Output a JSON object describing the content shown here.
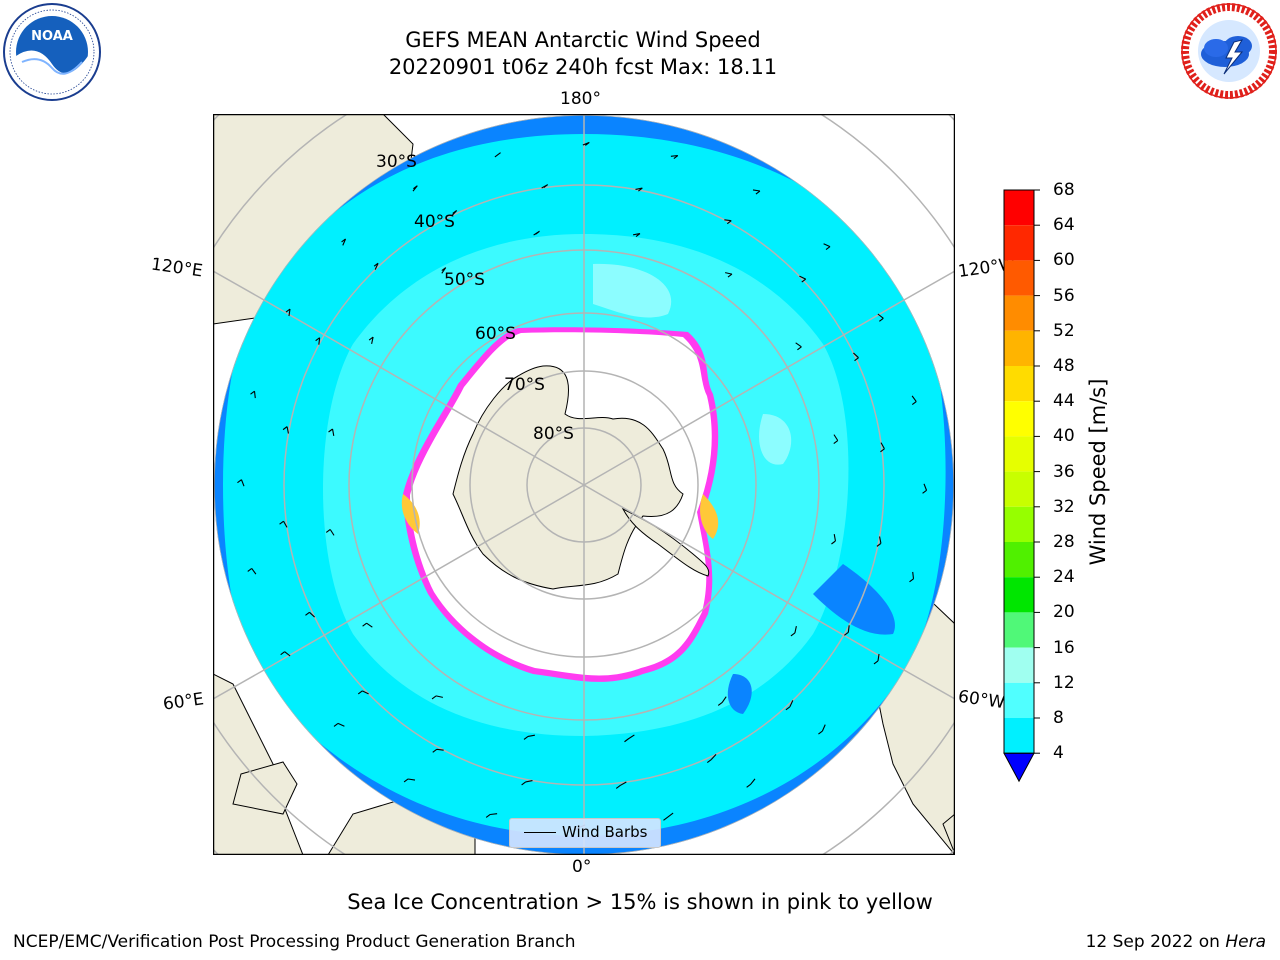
{
  "header": {
    "title_line1": "GEFS MEAN Antarctic Wind Speed",
    "title_line2": "20220901 t06z 240h fcst   Max: 18.11"
  },
  "logos": {
    "left": {
      "icon": "noaa-logo",
      "text": "NOAA"
    },
    "right": {
      "icon": "nws-logo"
    }
  },
  "map": {
    "projection": "south-polar-stereographic",
    "longitude_labels": {
      "top": "180°",
      "bottom": "0°",
      "upper_left": "120°E",
      "upper_right": "120°W",
      "lower_left": "60°E",
      "lower_right": "60°W"
    },
    "latitude_labels": [
      "30°S",
      "40°S",
      "50°S",
      "60°S",
      "70°S",
      "80°S"
    ],
    "legend_label": "Wind Barbs",
    "colors": {
      "land": "#eeecdb",
      "ocean_low": "#0a84ff",
      "ocean_mid": "#00f0ff",
      "ocean_high": "#3cfaff",
      "ocean_peak": "#8cfdff",
      "sea_ice_edge": "#ff3cf0",
      "graticule": "#b4b4b4"
    }
  },
  "colorbar": {
    "label": "Wind Speed [m/s]",
    "ticks": [
      "68",
      "64",
      "60",
      "56",
      "52",
      "48",
      "44",
      "40",
      "36",
      "32",
      "28",
      "24",
      "20",
      "16",
      "12",
      "8",
      "4"
    ],
    "colors_top_to_bottom": [
      "#ff0000",
      "#ff2800",
      "#ff5a00",
      "#ff8c00",
      "#ffb400",
      "#ffdc00",
      "#ffff00",
      "#e6ff00",
      "#c8ff00",
      "#96ff00",
      "#50f000",
      "#00e600",
      "#50f878",
      "#a0fff0",
      "#50ffff",
      "#00f0ff",
      "#0a80ff"
    ],
    "under_color": "#0000ff"
  },
  "caption": "Sea Ice Concentration > 15% is shown in pink to yellow",
  "footer": {
    "left": "NCEP/EMC/Verification Post Processing Product Generation Branch",
    "right_prefix": "12 Sep 2022 on",
    "right_machine": "Hera"
  }
}
